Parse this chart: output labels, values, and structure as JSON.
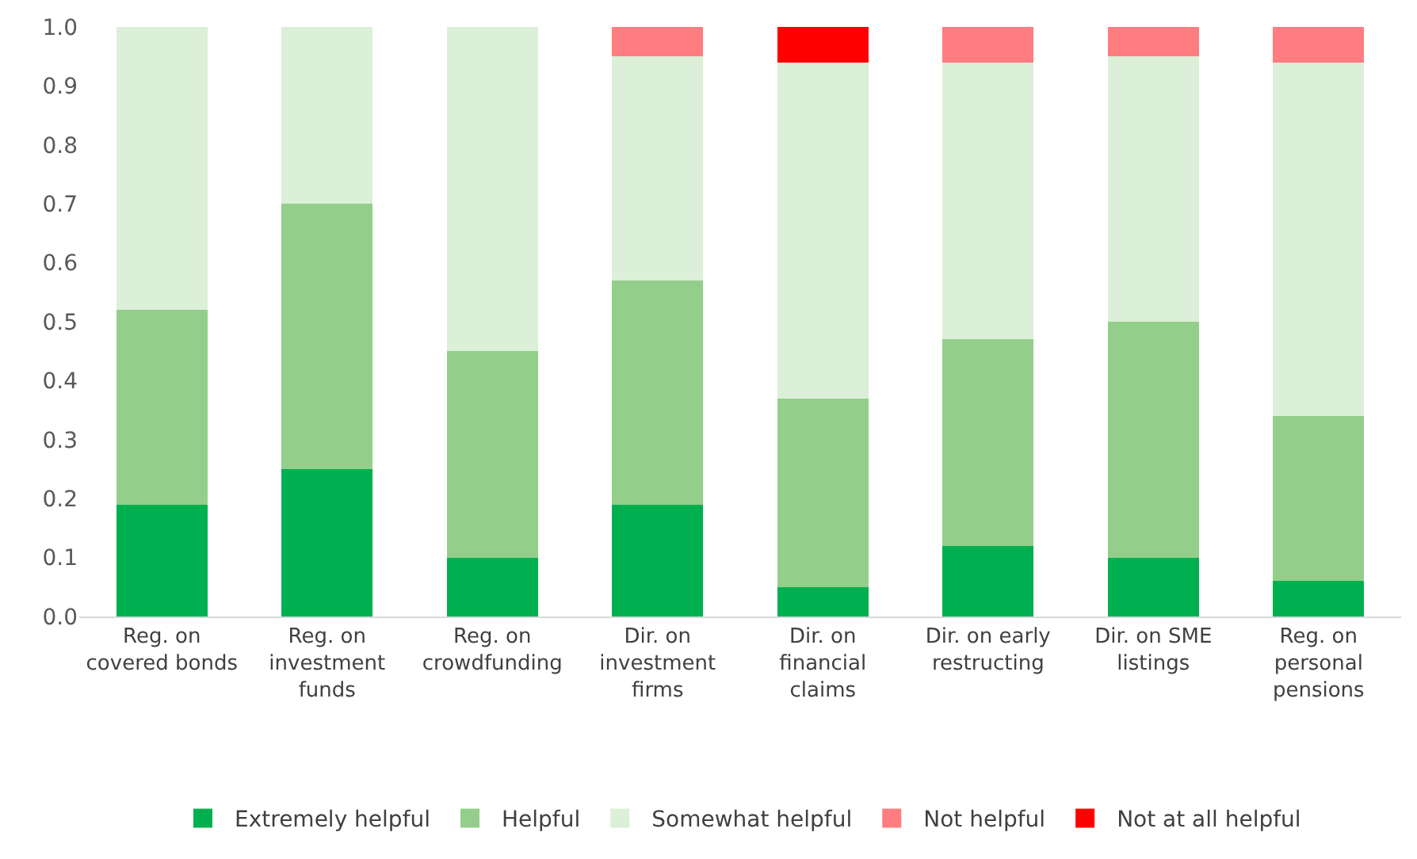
{
  "chart_data": {
    "type": "bar",
    "stacked": true,
    "categories": [
      "Reg. on covered bonds",
      "Reg. on investment funds",
      "Reg. on crowdfunding",
      "Dir. on investment firms",
      "Dir. on financial claims",
      "Dir. on early restructing",
      "Dir. on SME listings",
      "Reg. on personal pensions"
    ],
    "series": [
      {
        "name": "Extremely helpful",
        "color": "#00b050",
        "values": [
          0.19,
          0.25,
          0.1,
          0.19,
          0.05,
          0.12,
          0.1,
          0.06
        ]
      },
      {
        "name": "Helpful",
        "color": "#93cf8a",
        "values": [
          0.33,
          0.45,
          0.35,
          0.38,
          0.32,
          0.35,
          0.4,
          0.28
        ]
      },
      {
        "name": "Somewhat helpful",
        "color": "#dcefd8",
        "values": [
          0.48,
          0.3,
          0.55,
          0.38,
          0.57,
          0.47,
          0.45,
          0.6
        ]
      },
      {
        "name": "Not helpful",
        "color": "#ff7c80",
        "values": [
          0,
          0,
          0,
          0.05,
          0,
          0.06,
          0.05,
          0.06
        ]
      },
      {
        "name": "Not at all helpful",
        "color": "#ff0000",
        "values": [
          0,
          0,
          0,
          0,
          0.06,
          0,
          0,
          0
        ]
      }
    ],
    "ylim": [
      0,
      1.0
    ],
    "yticks": [
      {
        "value": 0,
        "label": "0.0"
      },
      0.1,
      0.2,
      0.3,
      0.4,
      0.5,
      0.6,
      0.7,
      0.8,
      0.9,
      {
        "value": 1,
        "label": "1.0"
      }
    ],
    "grid": false,
    "legend": "bottom"
  }
}
